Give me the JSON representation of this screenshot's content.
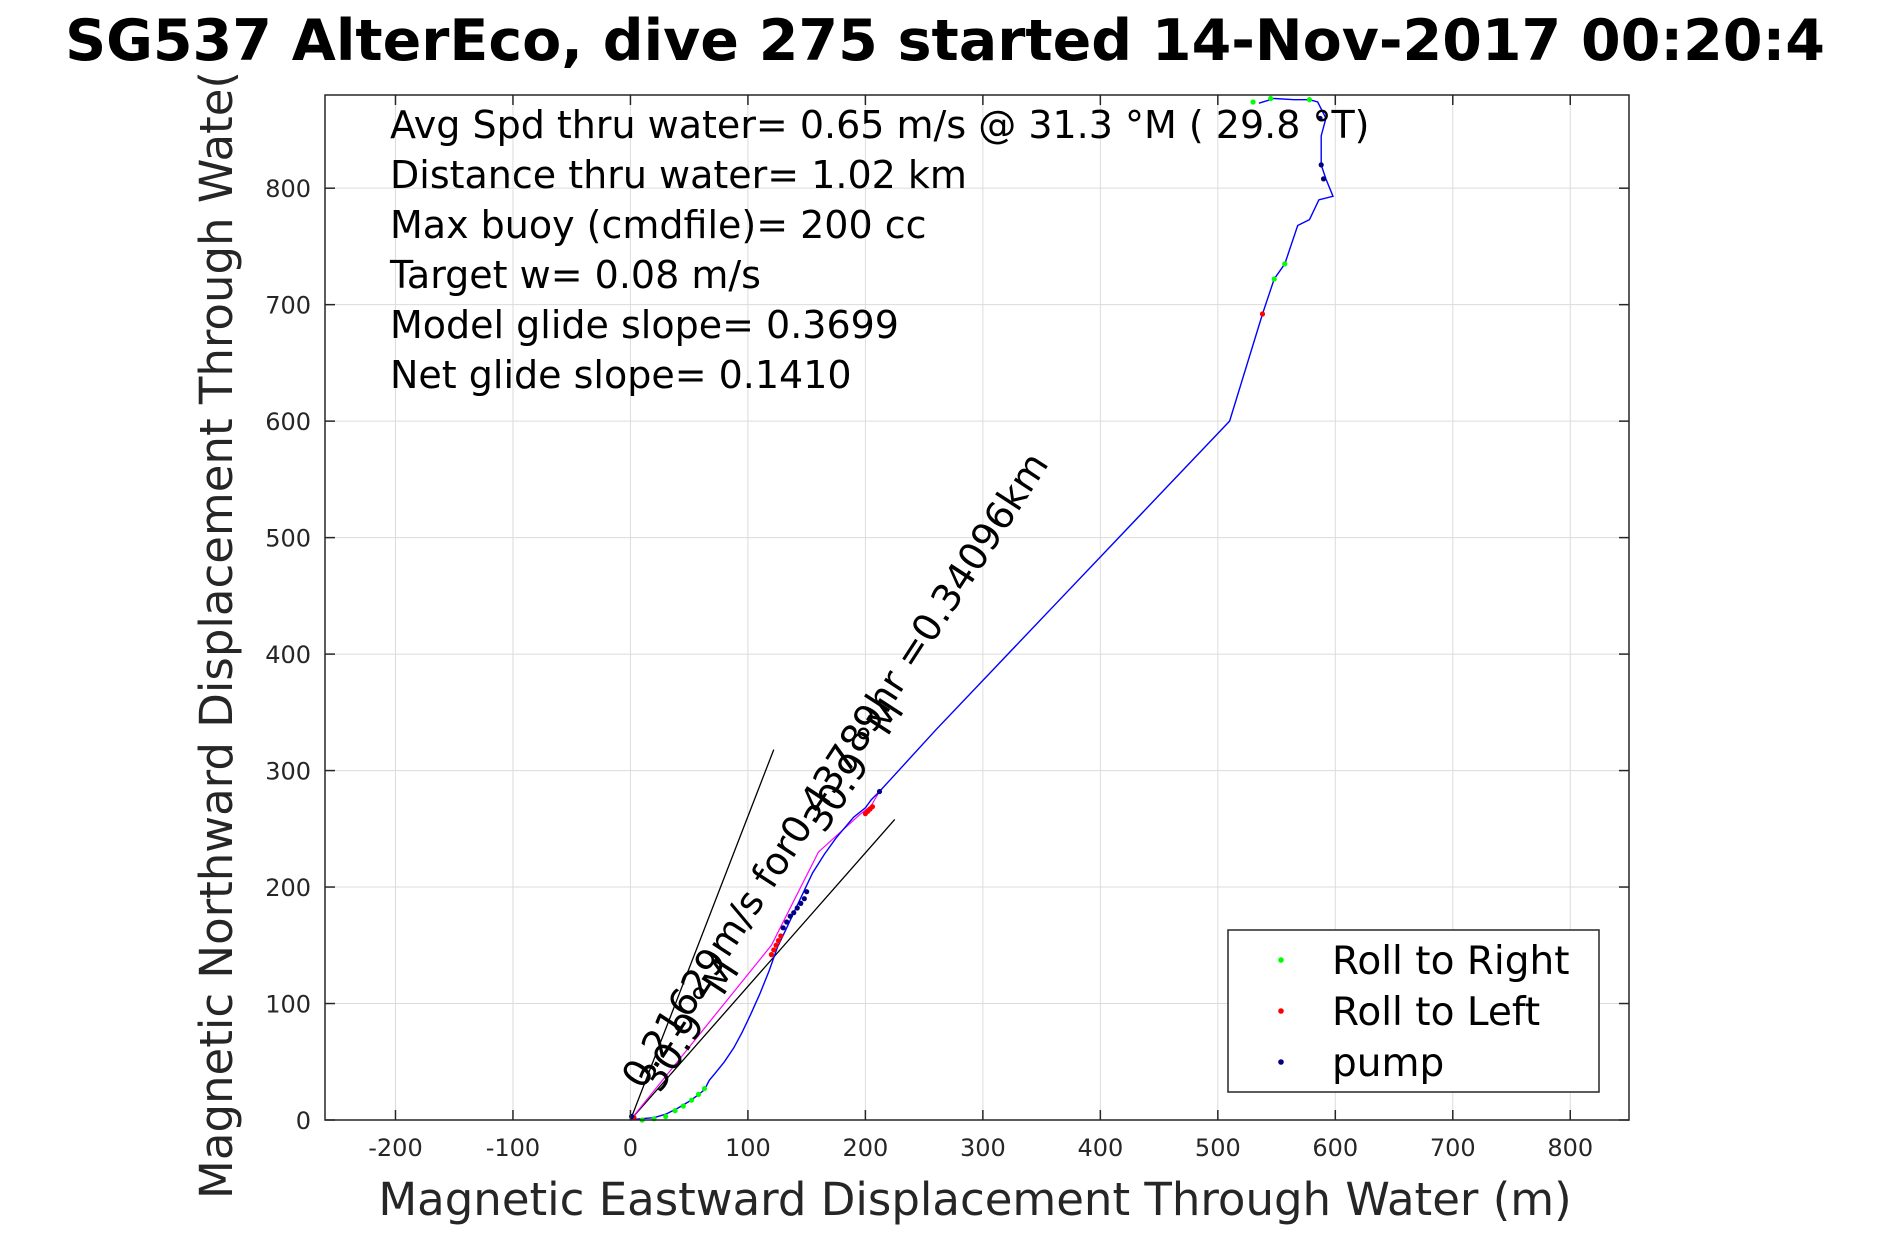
{
  "title": "SG537 AlterEco, dive 275 started 14-Nov-2017 00:20:4",
  "chart_data": {
    "type": "line",
    "title": "SG537 AlterEco, dive 275 started 14-Nov-2017 00:20:4",
    "xlabel": "Magnetic Eastward Displacement Through Water (m)",
    "ylabel": "Magnetic Northward Displacement Through Wate(",
    "xlim": [
      -260,
      850
    ],
    "ylim": [
      0,
      880
    ],
    "grid": true,
    "xticks": [
      -200,
      -100,
      0,
      100,
      200,
      300,
      400,
      500,
      600,
      700,
      800
    ],
    "yticks": [
      0,
      100,
      200,
      300,
      400,
      500,
      600,
      700,
      800
    ],
    "info_lines": [
      "Avg Spd thru water=  0.65 m/s @  31.3 °M ( 29.8 °T)",
      "Distance thru water=  1.02 km",
      "Max buoy (cmdfile)= 200 cc",
      "Target w= 0.08 m/s",
      "Model glide slope= 0.3699",
      "Net glide slope= 0.1410"
    ],
    "annotations": [
      {
        "text": "0.21629m/s for0.43789hr =0.34096km",
        "x": 10,
        "y": 25,
        "angle_deg": -57
      },
      {
        "text": "30.9 °M",
        "x": 25,
        "y": 22,
        "angle_deg": -57
      },
      {
        "text": "30.9 °M",
        "x": 165,
        "y": 245,
        "angle_deg": -57
      }
    ],
    "reference_lines": [
      {
        "x": [
          0,
          122
        ],
        "y": [
          0,
          318
        ]
      },
      {
        "x": [
          0,
          225
        ],
        "y": [
          0,
          258
        ]
      }
    ],
    "track": {
      "name": "track",
      "color": "#0000ff",
      "x": [
        0,
        8,
        20,
        30,
        40,
        50,
        57,
        63,
        67,
        72,
        80,
        88,
        95,
        102,
        110,
        118,
        125,
        133,
        140,
        147,
        155,
        165,
        175,
        190,
        200,
        205,
        212,
        260,
        310,
        360,
        410,
        460,
        510,
        538,
        548,
        557,
        568,
        578,
        586,
        598,
        592,
        588,
        588,
        592,
        585,
        578,
        565,
        548,
        535
      ],
      "y": [
        0,
        1,
        2,
        5,
        10,
        16,
        21,
        26,
        34,
        40,
        50,
        62,
        75,
        90,
        108,
        128,
        148,
        165,
        180,
        195,
        212,
        228,
        242,
        260,
        268,
        275,
        282,
        335,
        388,
        441,
        494,
        547,
        600,
        692,
        722,
        735,
        768,
        773,
        790,
        793,
        808,
        820,
        845,
        860,
        874,
        876,
        876,
        877,
        873
      ]
    },
    "reference_track": {
      "color": "#ff00ff",
      "x": [
        0,
        60,
        120,
        160,
        195,
        205,
        212
      ],
      "y": [
        0,
        75,
        150,
        230,
        262,
        270,
        282
      ]
    },
    "series": [
      {
        "name": "Roll to Right",
        "color": "#00ff00",
        "x": [
          10,
          20,
          30,
          38,
          45,
          52,
          58,
          63,
          548,
          557,
          578,
          530,
          545
        ],
        "y": [
          0,
          1,
          3,
          8,
          12,
          17,
          22,
          27,
          722,
          735,
          876,
          874,
          877
        ]
      },
      {
        "name": "Roll to Left",
        "color": "#ff0000",
        "x": [
          3,
          120,
          122,
          124,
          126,
          128,
          200,
          202,
          204,
          206,
          538
        ],
        "y": [
          2,
          142,
          146,
          150,
          154,
          158,
          263,
          265,
          267,
          269,
          692
        ]
      },
      {
        "name": "pump",
        "color": "#000080",
        "x": [
          1,
          130,
          133,
          136,
          139,
          142,
          145,
          148,
          150,
          212,
          587,
          590,
          588
        ],
        "y": [
          3,
          165,
          170,
          175,
          178,
          182,
          186,
          190,
          196,
          282,
          860,
          808,
          820
        ]
      }
    ],
    "legend": {
      "position": "bottom-right",
      "entries": [
        "Roll to Right",
        "Roll to Left",
        "pump"
      ]
    }
  }
}
